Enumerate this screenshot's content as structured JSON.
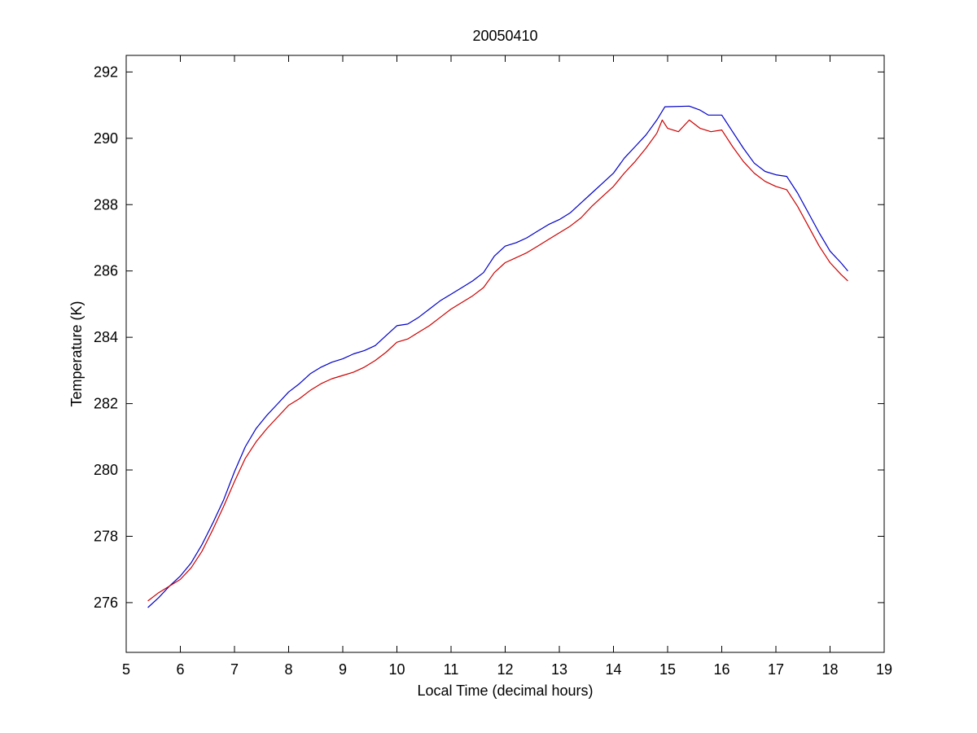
{
  "chart_data": {
    "type": "line",
    "title": "20050410",
    "xlabel": "Local Time (decimal hours)",
    "ylabel": "Temperature (K)",
    "xlim": [
      5,
      19
    ],
    "ylim": [
      274.5,
      292.5
    ],
    "xticks": [
      5,
      6,
      7,
      8,
      9,
      10,
      11,
      12,
      13,
      14,
      15,
      16,
      17,
      18,
      19
    ],
    "yticks": [
      276,
      278,
      280,
      282,
      284,
      286,
      288,
      290,
      292
    ],
    "grid": false,
    "series": [
      {
        "color": "#0000c8",
        "points": [
          [
            5.4,
            275.85
          ],
          [
            5.6,
            276.15
          ],
          [
            5.8,
            276.5
          ],
          [
            6.0,
            276.8
          ],
          [
            6.2,
            277.2
          ],
          [
            6.4,
            277.75
          ],
          [
            6.6,
            278.4
          ],
          [
            6.8,
            279.1
          ],
          [
            7.0,
            279.95
          ],
          [
            7.2,
            280.7
          ],
          [
            7.4,
            281.25
          ],
          [
            7.6,
            281.65
          ],
          [
            7.8,
            282.0
          ],
          [
            8.0,
            282.35
          ],
          [
            8.2,
            282.6
          ],
          [
            8.4,
            282.9
          ],
          [
            8.6,
            283.1
          ],
          [
            8.8,
            283.25
          ],
          [
            9.0,
            283.35
          ],
          [
            9.2,
            283.5
          ],
          [
            9.4,
            283.6
          ],
          [
            9.6,
            283.75
          ],
          [
            9.8,
            284.05
          ],
          [
            10.0,
            284.35
          ],
          [
            10.2,
            284.4
          ],
          [
            10.4,
            284.6
          ],
          [
            10.6,
            284.85
          ],
          [
            10.8,
            285.1
          ],
          [
            11.0,
            285.3
          ],
          [
            11.2,
            285.5
          ],
          [
            11.4,
            285.7
          ],
          [
            11.6,
            285.95
          ],
          [
            11.8,
            286.45
          ],
          [
            12.0,
            286.75
          ],
          [
            12.2,
            286.85
          ],
          [
            12.4,
            287.0
          ],
          [
            12.6,
            287.2
          ],
          [
            12.8,
            287.4
          ],
          [
            13.0,
            287.55
          ],
          [
            13.2,
            287.75
          ],
          [
            13.4,
            288.05
          ],
          [
            13.6,
            288.35
          ],
          [
            13.8,
            288.65
          ],
          [
            14.0,
            288.95
          ],
          [
            14.2,
            289.4
          ],
          [
            14.4,
            289.75
          ],
          [
            14.6,
            290.1
          ],
          [
            14.8,
            290.55
          ],
          [
            14.95,
            290.95
          ],
          [
            15.4,
            290.97
          ],
          [
            15.6,
            290.85
          ],
          [
            15.75,
            290.7
          ],
          [
            16.0,
            290.7
          ],
          [
            16.2,
            290.2
          ],
          [
            16.4,
            289.7
          ],
          [
            16.6,
            289.25
          ],
          [
            16.8,
            289.0
          ],
          [
            17.0,
            288.9
          ],
          [
            17.2,
            288.85
          ],
          [
            17.4,
            288.35
          ],
          [
            17.6,
            287.75
          ],
          [
            17.8,
            287.15
          ],
          [
            18.0,
            286.6
          ],
          [
            18.2,
            286.25
          ],
          [
            18.33,
            286.0
          ]
        ]
      },
      {
        "color": "#cc0000",
        "points": [
          [
            5.4,
            276.05
          ],
          [
            5.6,
            276.3
          ],
          [
            5.8,
            276.5
          ],
          [
            6.0,
            276.7
          ],
          [
            6.2,
            277.05
          ],
          [
            6.4,
            277.55
          ],
          [
            6.6,
            278.2
          ],
          [
            6.8,
            278.9
          ],
          [
            7.0,
            279.65
          ],
          [
            7.2,
            280.35
          ],
          [
            7.4,
            280.85
          ],
          [
            7.6,
            281.25
          ],
          [
            7.8,
            281.6
          ],
          [
            8.0,
            281.95
          ],
          [
            8.2,
            282.15
          ],
          [
            8.4,
            282.4
          ],
          [
            8.6,
            282.6
          ],
          [
            8.8,
            282.75
          ],
          [
            9.0,
            282.85
          ],
          [
            9.2,
            282.95
          ],
          [
            9.4,
            283.1
          ],
          [
            9.6,
            283.3
          ],
          [
            9.8,
            283.55
          ],
          [
            10.0,
            283.85
          ],
          [
            10.2,
            283.95
          ],
          [
            10.4,
            284.15
          ],
          [
            10.6,
            284.35
          ],
          [
            10.8,
            284.6
          ],
          [
            11.0,
            284.85
          ],
          [
            11.2,
            285.05
          ],
          [
            11.4,
            285.25
          ],
          [
            11.6,
            285.5
          ],
          [
            11.8,
            285.95
          ],
          [
            12.0,
            286.25
          ],
          [
            12.2,
            286.4
          ],
          [
            12.4,
            286.55
          ],
          [
            12.6,
            286.75
          ],
          [
            12.8,
            286.95
          ],
          [
            13.0,
            287.15
          ],
          [
            13.2,
            287.35
          ],
          [
            13.4,
            287.6
          ],
          [
            13.6,
            287.95
          ],
          [
            13.8,
            288.25
          ],
          [
            14.0,
            288.55
          ],
          [
            14.2,
            288.95
          ],
          [
            14.4,
            289.3
          ],
          [
            14.6,
            289.7
          ],
          [
            14.8,
            290.15
          ],
          [
            14.9,
            290.55
          ],
          [
            15.0,
            290.3
          ],
          [
            15.2,
            290.2
          ],
          [
            15.4,
            290.55
          ],
          [
            15.6,
            290.3
          ],
          [
            15.8,
            290.2
          ],
          [
            16.0,
            290.25
          ],
          [
            16.2,
            289.75
          ],
          [
            16.4,
            289.3
          ],
          [
            16.6,
            288.95
          ],
          [
            16.8,
            288.7
          ],
          [
            17.0,
            288.55
          ],
          [
            17.2,
            288.45
          ],
          [
            17.4,
            287.95
          ],
          [
            17.6,
            287.35
          ],
          [
            17.8,
            286.75
          ],
          [
            18.0,
            286.25
          ],
          [
            18.2,
            285.9
          ],
          [
            18.33,
            285.7
          ]
        ]
      }
    ]
  }
}
